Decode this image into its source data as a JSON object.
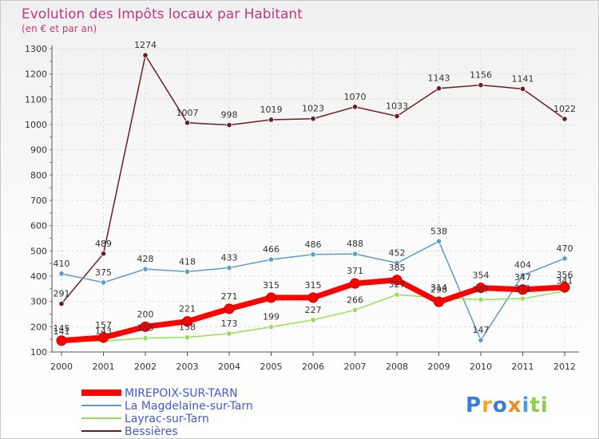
{
  "chart_data": {
    "type": "line",
    "title": "Evolution des Impôts locaux par Habitant",
    "subtitle": "(en € et par an)",
    "xlabel": "",
    "ylabel": "",
    "ylim": [
      100,
      1300
    ],
    "yticks": [
      "100",
      "200",
      "300",
      "400",
      "500",
      "600",
      "700",
      "800",
      "900",
      "1000",
      "1100",
      "1200",
      "1300"
    ],
    "categories": [
      "2000",
      "2001",
      "2002",
      "2003",
      "2004",
      "2005",
      "2006",
      "2007",
      "2008",
      "2009",
      "2010",
      "2011",
      "2012"
    ],
    "grid": true,
    "legend_position": "bottom-left",
    "series": [
      {
        "name": "Bessières",
        "color": "#6e1c24",
        "values": [
          291,
          489,
          1274,
          1007,
          998,
          1019,
          1023,
          1070,
          1033,
          1143,
          1156,
          1141,
          1022
        ]
      },
      {
        "name": "La Magdelaine-sur-Tarn",
        "color": "#5b9ccc",
        "values": [
          410,
          375,
          428,
          418,
          433,
          466,
          486,
          488,
          452,
          538,
          147,
          404,
          470
        ]
      },
      {
        "name": "Layrac-sur-Tarn",
        "color": "#99dd55",
        "values": [
          141,
          143,
          155,
          158,
          173,
          199,
          227,
          266,
          327,
          314,
          307,
          311,
          341
        ]
      },
      {
        "name": "MIREPOIX-SUR-TARN",
        "color": "#ff0000",
        "values": [
          145,
          157,
          200,
          221,
          271,
          315,
          315,
          371,
          385,
          298,
          354,
          347,
          356
        ]
      }
    ],
    "legend": [
      {
        "name": "MIREPOIX-SUR-TARN",
        "color": "#ff0000"
      },
      {
        "name": "La Magdelaine-sur-Tarn",
        "color": "#5b9ccc"
      },
      {
        "name": "Layrac-sur-Tarn",
        "color": "#99dd55"
      },
      {
        "name": "Bessières",
        "color": "#6e1c24"
      }
    ]
  },
  "logo": {
    "text": "Proxiti",
    "colors": [
      "#3a7bd5",
      "#f5a623",
      "#3a7bd5",
      "#f08a24",
      "#4a9ee8",
      "#8ccf4a",
      "#8ccf4a"
    ]
  }
}
